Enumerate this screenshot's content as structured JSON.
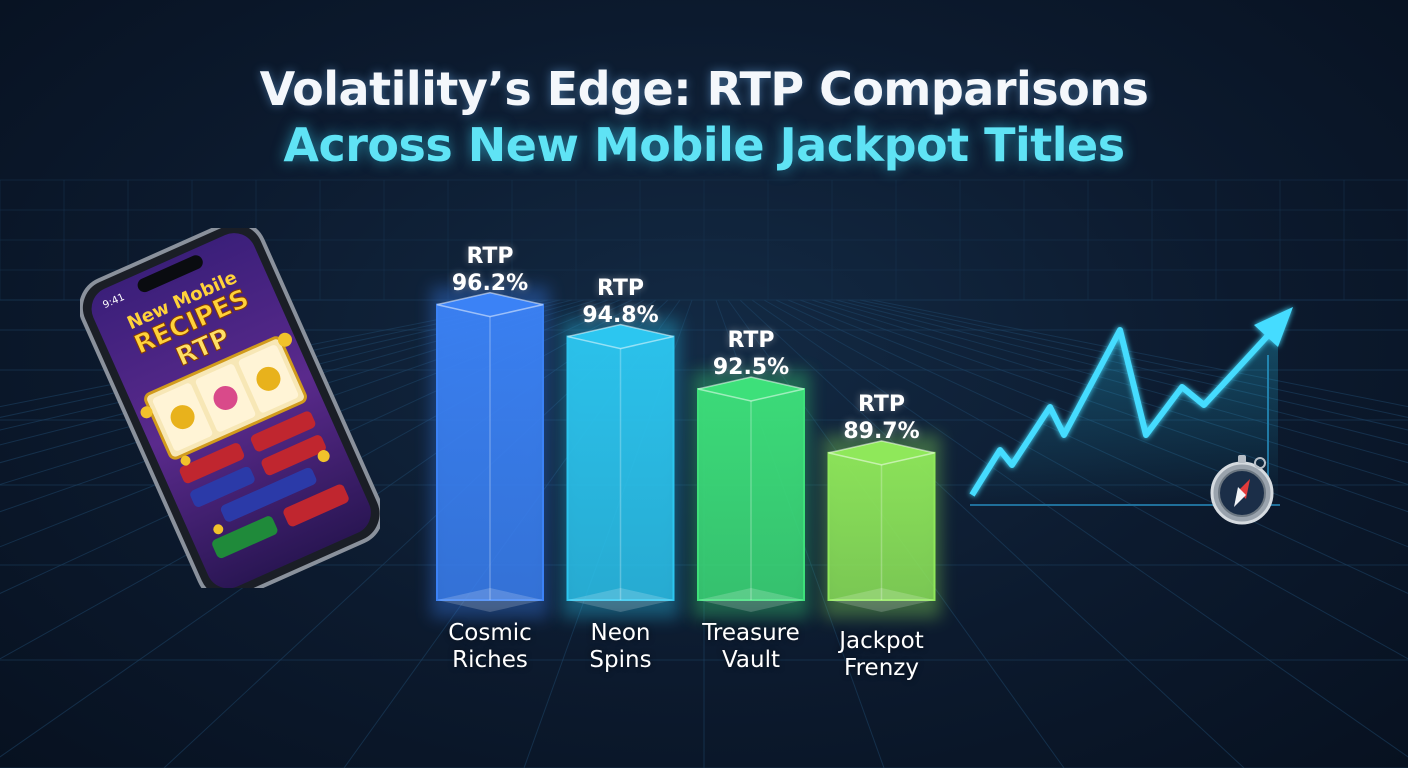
{
  "title_line1": "Volatility’s Edge: RTP Comparisons",
  "title_line2": "Across New Mobile Jackpot Titles",
  "rtp_prefix": "RTP",
  "bar_colors": [
    "#3b82f6",
    "#2cc6f0",
    "#3de07a",
    "#8fe85a"
  ],
  "accent_color": "#5fe3f5",
  "phone": {
    "time": "9:41",
    "banner_line1": "New Mobile",
    "banner_line2": "RECIPES",
    "banner_line3": "RTP"
  },
  "chart_data": {
    "type": "bar",
    "categories": [
      "Cosmic\nRiches",
      "Neon\nSpins",
      "Treasure\nVault",
      "Jackpot\nFrenzy"
    ],
    "values": [
      96.2,
      94.8,
      92.5,
      89.7
    ],
    "value_labels": [
      "96.2%",
      "94.8%",
      "92.5%",
      "89.7%"
    ],
    "title": "Volatility’s Edge: RTP Comparisons Across New Mobile Jackpot Titles",
    "ylabel": "",
    "xlabel": "",
    "grid": true
  }
}
